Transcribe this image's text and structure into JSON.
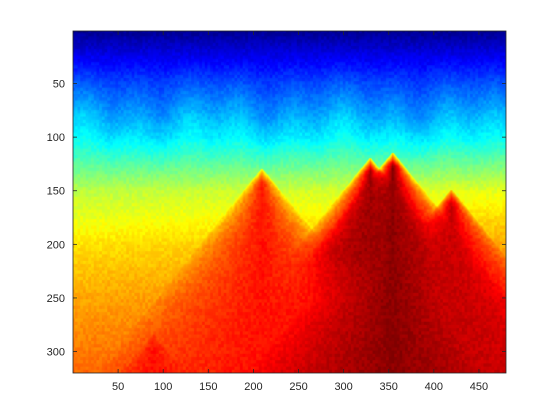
{
  "chart_data": {
    "type": "heatmap",
    "title": "",
    "xlabel": "",
    "ylabel": "",
    "colormap": "jet",
    "xlim": [
      0,
      480
    ],
    "ylim": [
      320,
      1
    ],
    "y_reversed": true,
    "grid": false,
    "legend": "none",
    "x_ticks": [
      50,
      100,
      150,
      200,
      250,
      300,
      350,
      400,
      450
    ],
    "y_ticks": [
      50,
      100,
      150,
      200,
      250,
      300
    ],
    "x_tick_labels": [
      "50",
      "100",
      "150",
      "200",
      "250",
      "300",
      "350",
      "400",
      "450"
    ],
    "y_tick_labels": [
      "50",
      "100",
      "150",
      "200",
      "250",
      "300"
    ],
    "colorscale_approx": {
      "row_1": 0.02,
      "row_50": 0.2,
      "row_100": 0.36,
      "row_150": 0.58,
      "row_200": 0.68,
      "row_250": 0.74,
      "row_320": 0.8
    },
    "features": [
      {
        "shape": "triangle",
        "apex_x": 355,
        "apex_y": 115,
        "base_y": 320,
        "peak": 0.99
      },
      {
        "shape": "triangle",
        "apex_x": 330,
        "apex_y": 120,
        "base_y": 210,
        "peak": 0.97
      },
      {
        "shape": "triangle",
        "apex_x": 210,
        "apex_y": 130,
        "base_y": 320,
        "peak": 0.86
      },
      {
        "shape": "triangle",
        "apex_x": 90,
        "apex_y": 285,
        "base_y": 320,
        "peak": 0.86
      },
      {
        "shape": "triangle",
        "apex_x": 420,
        "apex_y": 150,
        "base_y": 320,
        "peak": 0.93
      }
    ]
  }
}
